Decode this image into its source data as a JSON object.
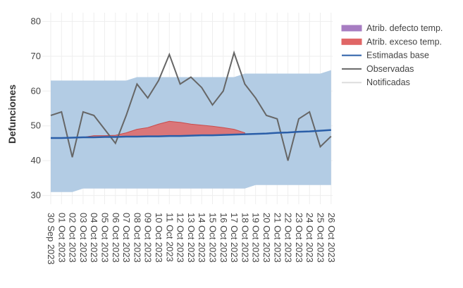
{
  "chart_data": {
    "type": "band-line",
    "y_label": "Defunciones",
    "categories": [
      "30 Sep 2023",
      "01 Oct 2023",
      "02 Oct 2023",
      "03 Oct 2023",
      "04 Oct 2023",
      "05 Oct 2023",
      "06 Oct 2023",
      "07 Oct 2023",
      "08 Oct 2023",
      "09 Oct 2023",
      "10 Oct 2023",
      "11 Oct 2023",
      "12 Oct 2023",
      "13 Oct 2023",
      "14 Oct 2023",
      "15 Oct 2023",
      "16 Oct 2023",
      "17 Oct 2023",
      "18 Oct 2023",
      "19 Oct 2023",
      "20 Oct 2023",
      "21 Oct 2023",
      "22 Oct 2023",
      "23 Oct 2023",
      "24 Oct 2023",
      "25 Oct 2023",
      "26 Oct 2023"
    ],
    "ylim": [
      27.5,
      82.5
    ],
    "yticks": [
      30,
      40,
      50,
      60,
      70,
      80
    ],
    "grid": true,
    "legend": "top-right",
    "series": [
      {
        "name": "Atrib. defecto temp.",
        "color": "#a77dc2",
        "values": [
          null,
          null,
          null,
          null,
          null,
          null,
          null,
          null,
          null,
          null,
          null,
          null,
          null,
          null,
          null,
          null,
          null,
          null,
          null,
          null,
          null,
          null,
          null,
          null,
          null,
          null,
          null
        ]
      },
      {
        "name": "Atrib. exceso temp.",
        "color": "#e06666",
        "values": [
          null,
          null,
          null,
          46.7,
          47.2,
          47.2,
          47.3,
          48,
          49,
          49.5,
          50.5,
          51.3,
          51,
          50.5,
          50.2,
          49.9,
          49.5,
          49,
          48,
          null,
          null,
          null,
          null,
          null,
          null,
          null,
          null
        ]
      },
      {
        "name": "Estimadas base",
        "color": "#2a5ea8",
        "band_color": "#b3cce4",
        "values": [
          46.5,
          46.5,
          46.6,
          46.7,
          46.7,
          46.8,
          46.8,
          46.9,
          46.9,
          47.0,
          47.0,
          47.1,
          47.1,
          47.2,
          47.3,
          47.3,
          47.4,
          47.5,
          47.6,
          47.7,
          47.8,
          48.0,
          48.1,
          48.3,
          48.4,
          48.6,
          48.8
        ],
        "band_upper": [
          63,
          63,
          63,
          63,
          63,
          63,
          63,
          63,
          64,
          64,
          64,
          64,
          64,
          64,
          64,
          64,
          64,
          64,
          65,
          65,
          65,
          65,
          65,
          65,
          65,
          65,
          66
        ],
        "band_lower": [
          31,
          31,
          31,
          32,
          32,
          32,
          32,
          32,
          32,
          32,
          32,
          32,
          32,
          32,
          32,
          32,
          32,
          32,
          32,
          33,
          33,
          33,
          33,
          33,
          33,
          33,
          33
        ]
      },
      {
        "name": "Observadas",
        "color": "#666666",
        "values": [
          53,
          54,
          41,
          54,
          53,
          49,
          45,
          53,
          62,
          58,
          63,
          70.5,
          62,
          64,
          61,
          56,
          60,
          71,
          62,
          58,
          53,
          52,
          40,
          52,
          54,
          44,
          47
        ]
      },
      {
        "name": "Notificadas",
        "color": "#dddddd",
        "values": [
          null,
          null,
          null,
          null,
          null,
          null,
          null,
          null,
          null,
          null,
          null,
          null,
          null,
          null,
          null,
          null,
          null,
          null,
          null,
          null,
          null,
          null,
          null,
          null,
          null,
          null,
          null
        ]
      }
    ]
  }
}
